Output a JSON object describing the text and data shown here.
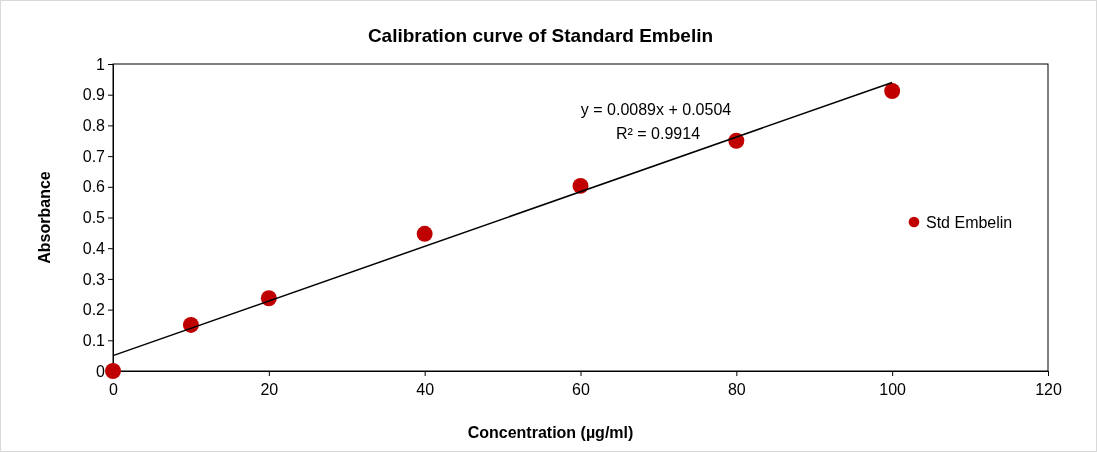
{
  "chart_data": {
    "type": "scatter",
    "title": "Calibration curve of Standard Embelin",
    "xlabel": "Concentration (µg/ml)",
    "ylabel": "Absorbance",
    "xlim": [
      0,
      120
    ],
    "xticks": [
      0,
      20,
      40,
      60,
      80,
      100,
      120
    ],
    "ylim": [
      0,
      1
    ],
    "yticks": [
      0,
      0.1,
      0.2,
      0.3,
      0.4,
      0.5,
      0.6,
      0.7,
      0.8,
      0.9,
      1
    ],
    "grid": false,
    "legend": "right",
    "marker": "circle",
    "annotations": [
      "y = 0.0089x + 0.0504",
      "R² = 0.9914"
    ],
    "series": [
      {
        "name": "Std Embelin",
        "color": "#c00000",
        "x": [
          0,
          10,
          20,
          40,
          60,
          80,
          100
        ],
        "values": [
          0,
          0.15,
          0.237,
          0.447,
          0.603,
          0.75,
          0.912
        ]
      },
      {
        "type": "line",
        "marker": "none",
        "color": "#000000",
        "x": [
          0,
          100
        ],
        "values": [
          0.05,
          0.94
        ]
      }
    ]
  }
}
